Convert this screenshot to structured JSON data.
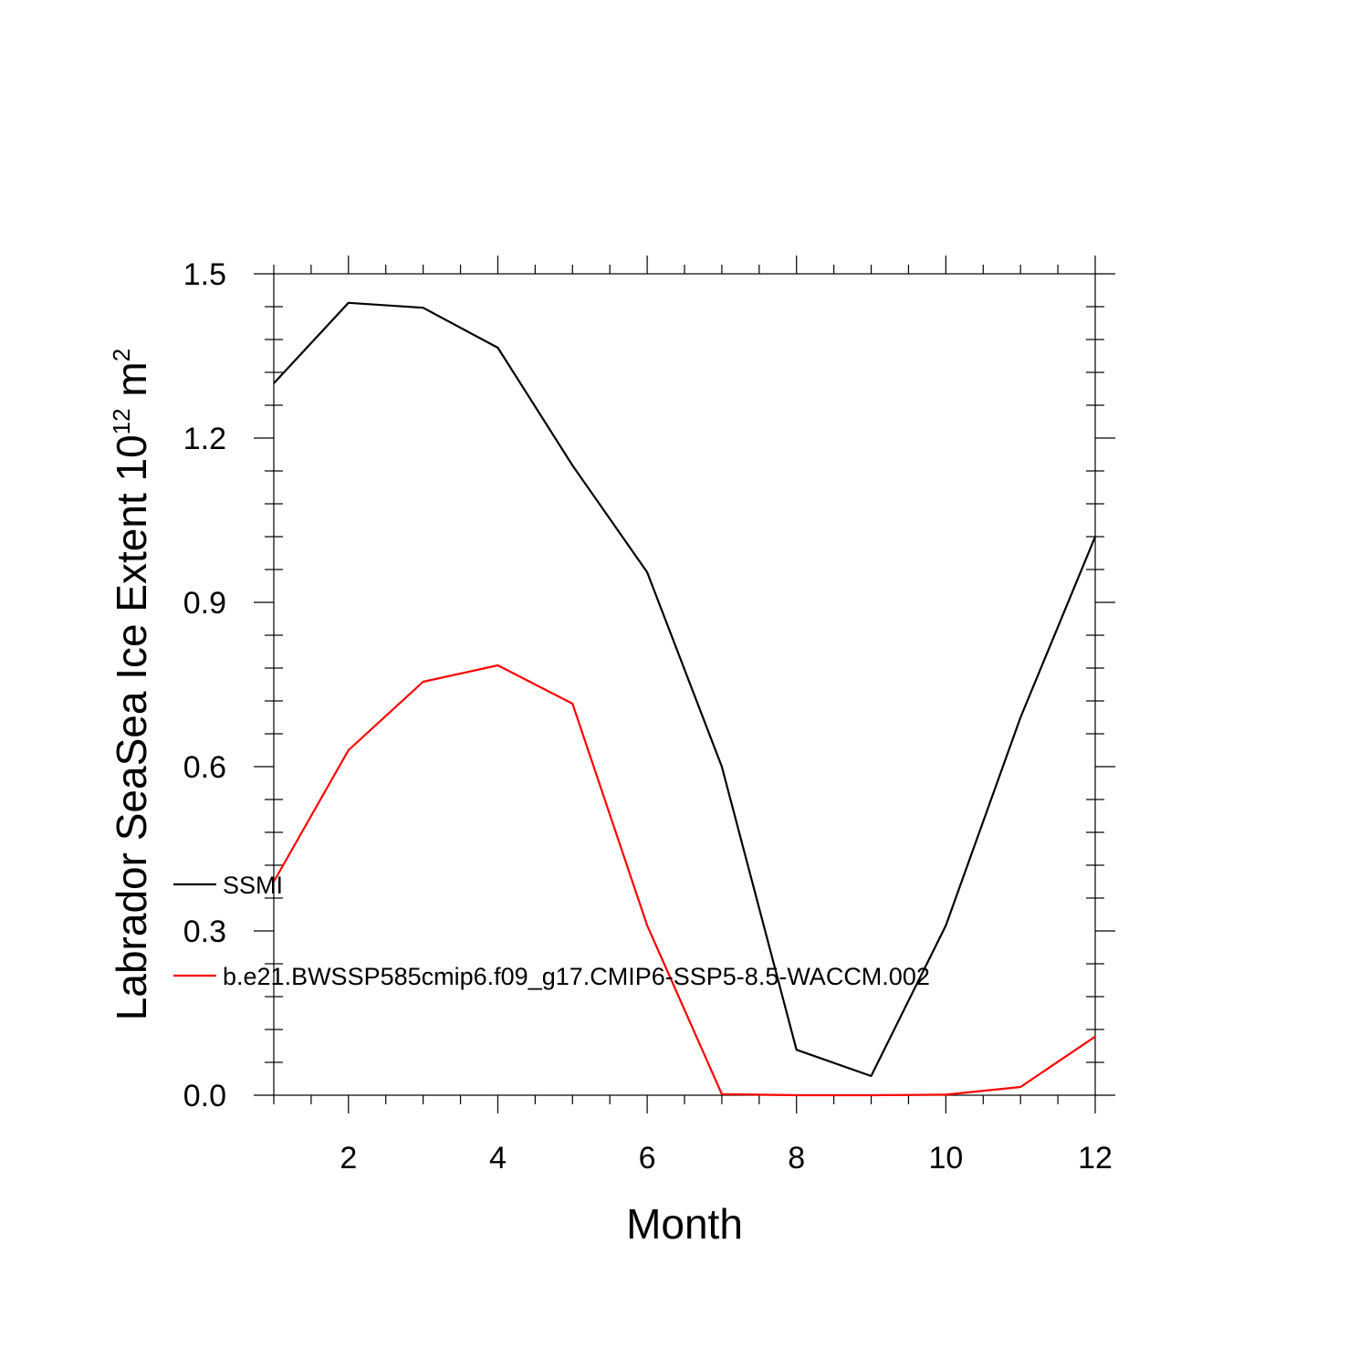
{
  "chart_data": {
    "type": "line",
    "xlabel": "Month",
    "ylabel_main": "Labrador SeaSea Ice Extent 10",
    "ylabel_exp1": "12",
    "ylabel_unit": " m",
    "ylabel_exp2": "2",
    "xlim": [
      1,
      12
    ],
    "ylim": [
      0,
      1.5
    ],
    "xticks": [
      2,
      4,
      6,
      8,
      10,
      12
    ],
    "xtick_labels": [
      "2",
      "4",
      "6",
      "8",
      "10",
      "12"
    ],
    "yticks": [
      0,
      0.3,
      0.6,
      0.9,
      1.2,
      1.5
    ],
    "ytick_labels": [
      "0.0",
      "0.3",
      "0.6",
      "0.9",
      "1.2",
      "1.5"
    ],
    "grid": false,
    "legend_position": "left-center",
    "x": [
      1,
      2,
      3,
      4,
      5,
      6,
      7,
      8,
      9,
      10,
      11,
      12
    ],
    "series": [
      {
        "name": "SSMI",
        "color": "#000000",
        "values": [
          1.3,
          1.447,
          1.438,
          1.365,
          1.15,
          0.955,
          0.6,
          0.083,
          0.035,
          0.31,
          0.69,
          1.02
        ]
      },
      {
        "name": "b.e21.BWSSP585cmip6.f09_g17.CMIP6-SSP5-8.5-WACCM.002",
        "color": "#ff0000",
        "values": [
          0.39,
          0.63,
          0.755,
          0.785,
          0.715,
          0.31,
          0.002,
          0.0,
          0.0,
          0.001,
          0.015,
          0.107
        ]
      }
    ]
  }
}
